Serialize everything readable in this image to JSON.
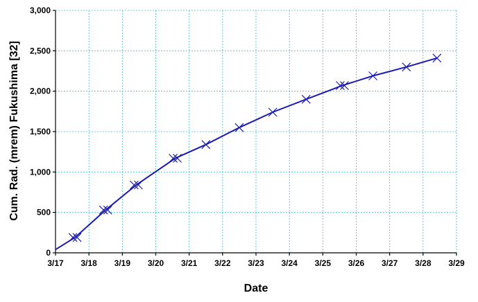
{
  "chart_data": {
    "type": "line",
    "title": "",
    "xlabel": "Date",
    "ylabel": "Cum. Rad. (mrem) Fukushima [32]",
    "x_tick_labels": [
      "3/17",
      "3/18",
      "3/19",
      "3/20",
      "3/21",
      "3/22",
      "3/23",
      "3/24",
      "3/25",
      "3/26",
      "3/27",
      "3/28",
      "3/29"
    ],
    "y_tick_labels": [
      "0",
      "500",
      "1,000",
      "1,500",
      "2,000",
      "2,500",
      "3,000"
    ],
    "xlim": [
      "3/17",
      "3/29"
    ],
    "ylim": [
      0,
      3000
    ],
    "grid": true,
    "line_color": "#1a1ab0",
    "grid_color": "#3fb8d8",
    "series": [
      {
        "x": [
          "3/17 00:00",
          "3/17 14:00",
          "3/18 12:00",
          "3/19 10:00",
          "3/20 14:00",
          "3/21 12:00",
          "3/22 12:00",
          "3/23 12:00",
          "3/24 12:00",
          "3/25 14:00",
          "3/26 12:00",
          "3/27 12:00",
          "3/28 10:00"
        ],
        "y": [
          40,
          190,
          530,
          840,
          1170,
          1340,
          1550,
          1740,
          1900,
          2070,
          2190,
          2300,
          2410
        ]
      }
    ],
    "markers": {
      "x": [
        "3/17 14:00",
        "3/18 12:00",
        "3/19 10:00",
        "3/20 14:00",
        "3/21 12:00",
        "3/22 12:00",
        "3/23 12:00",
        "3/24 12:00",
        "3/25 14:00",
        "3/26 12:00",
        "3/27 12:00",
        "3/28 10:00"
      ],
      "y": [
        190,
        530,
        840,
        1170,
        1340,
        1550,
        1740,
        1900,
        2070,
        2190,
        2300,
        2410
      ],
      "double": [
        true,
        true,
        true,
        true,
        false,
        false,
        false,
        false,
        true,
        false,
        false,
        false
      ]
    }
  }
}
